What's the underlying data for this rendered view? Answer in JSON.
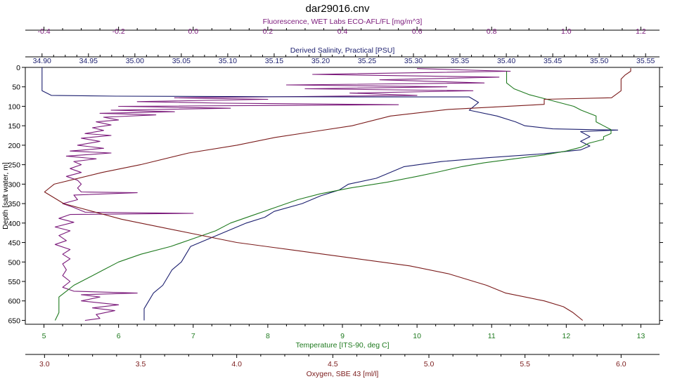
{
  "colors": {
    "fluorescence": "#7b1a7b",
    "salinity": "#1b1e6e",
    "temperature": "#1f7a1f",
    "oxygen": "#7a1a1a",
    "frame": "#000000",
    "background": "#ffffff"
  },
  "chart_data": {
    "type": "line",
    "title": "dar29016.cnv",
    "grid": false,
    "y_axis": {
      "label": "Depth [salt water, m]",
      "range": [
        0,
        660
      ],
      "ticks": [
        "0",
        "50",
        "100",
        "150",
        "200",
        "250",
        "300",
        "350",
        "400",
        "450",
        "500",
        "550",
        "600",
        "650"
      ],
      "inverted": true
    },
    "x_axes": [
      {
        "key": "fluorescence",
        "label": "Fluorescence, WET Labs ECO-AFL/FL [mg/m^3]",
        "position": "top-outer",
        "range": [
          -0.45,
          1.25
        ],
        "tick_values": [
          -0.4,
          -0.2,
          0.0,
          0.2,
          0.4,
          0.6,
          0.8,
          1.0,
          1.2
        ],
        "tick_labels": [
          "-0.4",
          "-0.2",
          "0.0",
          "0.2",
          "0.4",
          "0.6",
          "0.8",
          "1.0",
          "1.2"
        ]
      },
      {
        "key": "salinity",
        "label": "Derived Salinity, Practical [PSU]",
        "position": "top-inner",
        "range": [
          34.882,
          35.565
        ],
        "tick_values": [
          34.9,
          34.95,
          35.0,
          35.05,
          35.1,
          35.15,
          35.2,
          35.25,
          35.3,
          35.35,
          35.4,
          35.45,
          35.5,
          35.55
        ],
        "tick_labels": [
          "34.90",
          "34.95",
          "35.00",
          "35.05",
          "35.10",
          "35.15",
          "35.20",
          "35.25",
          "35.30",
          "35.35",
          "35.40",
          "35.45",
          "35.50",
          "35.55"
        ]
      },
      {
        "key": "temperature",
        "label": "Temperature [ITS-90, deg C]",
        "position": "bottom-inner",
        "range": [
          4.75,
          13.25
        ],
        "tick_values": [
          5,
          6,
          7,
          8,
          9,
          10,
          11,
          12,
          13
        ],
        "tick_labels": [
          "5",
          "6",
          "7",
          "8",
          "9",
          "10",
          "11",
          "12",
          "13"
        ]
      },
      {
        "key": "oxygen",
        "label": "Oxygen, SBE 43 [ml/l]",
        "position": "bottom-outer",
        "range": [
          2.9,
          6.2
        ],
        "tick_values": [
          3.0,
          3.5,
          4.0,
          4.5,
          5.0,
          5.5,
          6.0
        ],
        "tick_labels": [
          "3.0",
          "3.5",
          "4.0",
          "4.5",
          "5.0",
          "5.5",
          "6.0"
        ]
      }
    ],
    "series": [
      {
        "key": "fluorescence",
        "name": "Fluorescence, WET Labs ECO-AFL/FL [mg/m^3]",
        "points": [
          [
            0.6,
            3
          ],
          [
            0.85,
            10
          ],
          [
            0.32,
            18
          ],
          [
            0.82,
            25
          ],
          [
            0.5,
            32
          ],
          [
            0.78,
            40
          ],
          [
            0.25,
            45
          ],
          [
            0.68,
            50
          ],
          [
            0.3,
            55
          ],
          [
            0.75,
            60
          ],
          [
            0.42,
            66
          ],
          [
            0.6,
            72
          ],
          [
            -0.05,
            78
          ],
          [
            0.2,
            82
          ],
          [
            -0.15,
            88
          ],
          [
            0.08,
            92
          ],
          [
            0.55,
            96
          ],
          [
            -0.2,
            100
          ],
          [
            0.1,
            105
          ],
          [
            -0.22,
            110
          ],
          [
            -0.05,
            114
          ],
          [
            -0.25,
            118
          ],
          [
            -0.1,
            122
          ],
          [
            -0.24,
            128
          ],
          [
            -0.2,
            135
          ],
          [
            -0.26,
            140
          ],
          [
            -0.22,
            148
          ],
          [
            -0.27,
            155
          ],
          [
            -0.24,
            162
          ],
          [
            -0.29,
            170
          ],
          [
            -0.22,
            175
          ],
          [
            -0.3,
            182
          ],
          [
            -0.25,
            190
          ],
          [
            -0.31,
            200
          ],
          [
            -0.24,
            208
          ],
          [
            -0.33,
            215
          ],
          [
            -0.22,
            220
          ],
          [
            -0.34,
            228
          ],
          [
            -0.26,
            235
          ],
          [
            -0.32,
            242
          ],
          [
            -0.3,
            250
          ],
          [
            -0.33,
            260
          ],
          [
            -0.3,
            270
          ],
          [
            -0.34,
            280
          ],
          [
            -0.31,
            290
          ],
          [
            -0.3,
            300
          ],
          [
            -0.31,
            310
          ],
          [
            -0.3,
            320
          ],
          [
            -0.15,
            322
          ],
          [
            -0.32,
            328
          ],
          [
            -0.31,
            340
          ],
          [
            -0.35,
            350
          ],
          [
            -0.32,
            360
          ],
          [
            -0.29,
            372
          ],
          [
            0.0,
            375
          ],
          [
            -0.33,
            378
          ],
          [
            -0.36,
            388
          ],
          [
            -0.32,
            398
          ],
          [
            -0.37,
            410
          ],
          [
            -0.33,
            420
          ],
          [
            -0.36,
            432
          ],
          [
            -0.34,
            445
          ],
          [
            -0.37,
            455
          ],
          [
            -0.33,
            468
          ],
          [
            -0.35,
            480
          ],
          [
            -0.33,
            492
          ],
          [
            -0.35,
            505
          ],
          [
            -0.34,
            520
          ],
          [
            -0.35,
            535
          ],
          [
            -0.33,
            550
          ],
          [
            -0.35,
            565
          ],
          [
            -0.32,
            575
          ],
          [
            -0.15,
            580
          ],
          [
            -0.3,
            584
          ],
          [
            -0.25,
            590
          ],
          [
            -0.3,
            600
          ],
          [
            -0.2,
            610
          ],
          [
            -0.27,
            618
          ],
          [
            -0.21,
            625
          ],
          [
            -0.26,
            635
          ],
          [
            -0.25,
            645
          ],
          [
            -0.29,
            650
          ]
        ]
      },
      {
        "key": "salinity",
        "name": "Derived Salinity, Practical [PSU]",
        "points": [
          [
            34.9,
            0
          ],
          [
            34.9,
            20
          ],
          [
            34.9,
            40
          ],
          [
            34.9,
            60
          ],
          [
            34.91,
            72
          ],
          [
            34.98,
            74
          ],
          [
            35.1,
            75
          ],
          [
            35.25,
            76
          ],
          [
            35.36,
            76
          ],
          [
            35.37,
            90
          ],
          [
            35.36,
            110
          ],
          [
            35.39,
            125
          ],
          [
            35.41,
            140
          ],
          [
            35.42,
            150
          ],
          [
            35.45,
            158
          ],
          [
            35.49,
            160
          ],
          [
            35.52,
            161
          ],
          [
            35.48,
            165
          ],
          [
            35.49,
            178
          ],
          [
            35.48,
            190
          ],
          [
            35.49,
            202
          ],
          [
            35.48,
            212
          ],
          [
            35.44,
            222
          ],
          [
            35.38,
            232
          ],
          [
            35.33,
            242
          ],
          [
            35.29,
            255
          ],
          [
            35.27,
            275
          ],
          [
            35.26,
            285
          ],
          [
            35.23,
            300
          ],
          [
            35.22,
            315
          ],
          [
            35.2,
            330
          ],
          [
            35.18,
            350
          ],
          [
            35.15,
            370
          ],
          [
            35.14,
            385
          ],
          [
            35.12,
            400
          ],
          [
            35.1,
            420
          ],
          [
            35.08,
            440
          ],
          [
            35.06,
            460
          ],
          [
            35.055,
            480
          ],
          [
            35.05,
            500
          ],
          [
            35.04,
            520
          ],
          [
            35.035,
            540
          ],
          [
            35.03,
            560
          ],
          [
            35.02,
            580
          ],
          [
            35.015,
            600
          ],
          [
            35.01,
            620
          ],
          [
            35.01,
            640
          ],
          [
            35.01,
            650
          ]
        ]
      },
      {
        "key": "temperature",
        "name": "Temperature [ITS-90, deg C]",
        "points": [
          [
            11.2,
            10
          ],
          [
            11.2,
            40
          ],
          [
            11.3,
            55
          ],
          [
            11.5,
            70
          ],
          [
            11.8,
            85
          ],
          [
            12.1,
            100
          ],
          [
            12.2,
            110
          ],
          [
            12.4,
            125
          ],
          [
            12.4,
            140
          ],
          [
            12.5,
            150
          ],
          [
            12.6,
            160
          ],
          [
            12.6,
            170
          ],
          [
            12.5,
            178
          ],
          [
            12.5,
            185
          ],
          [
            12.3,
            195
          ],
          [
            12.2,
            205
          ],
          [
            12.0,
            215
          ],
          [
            11.7,
            225
          ],
          [
            11.3,
            235
          ],
          [
            10.9,
            245
          ],
          [
            10.6,
            255
          ],
          [
            10.3,
            268
          ],
          [
            10.0,
            280
          ],
          [
            9.6,
            295
          ],
          [
            9.1,
            310
          ],
          [
            8.7,
            325
          ],
          [
            8.4,
            340
          ],
          [
            8.1,
            360
          ],
          [
            7.8,
            380
          ],
          [
            7.5,
            400
          ],
          [
            7.3,
            420
          ],
          [
            7.0,
            440
          ],
          [
            6.7,
            460
          ],
          [
            6.3,
            480
          ],
          [
            6.0,
            500
          ],
          [
            5.8,
            520
          ],
          [
            5.6,
            540
          ],
          [
            5.4,
            560
          ],
          [
            5.3,
            575
          ],
          [
            5.2,
            590
          ],
          [
            5.2,
            610
          ],
          [
            5.2,
            630
          ],
          [
            5.15,
            650
          ]
        ]
      },
      {
        "key": "oxygen",
        "name": "Oxygen, SBE 43 [ml/l]",
        "points": [
          [
            6.05,
            2
          ],
          [
            6.05,
            10
          ],
          [
            6.02,
            20
          ],
          [
            6.0,
            30
          ],
          [
            6.0,
            60
          ],
          [
            5.95,
            78
          ],
          [
            5.6,
            82
          ],
          [
            5.6,
            95
          ],
          [
            5.1,
            108
          ],
          [
            4.8,
            125
          ],
          [
            4.6,
            150
          ],
          [
            4.4,
            165
          ],
          [
            4.2,
            180
          ],
          [
            4.0,
            200
          ],
          [
            3.75,
            220
          ],
          [
            3.5,
            250
          ],
          [
            3.3,
            270
          ],
          [
            3.05,
            300
          ],
          [
            3.0,
            320
          ],
          [
            3.1,
            350
          ],
          [
            3.4,
            390
          ],
          [
            3.6,
            410
          ],
          [
            3.8,
            430
          ],
          [
            4.0,
            450
          ],
          [
            4.3,
            470
          ],
          [
            4.6,
            490
          ],
          [
            4.9,
            510
          ],
          [
            5.1,
            530
          ],
          [
            5.3,
            560
          ],
          [
            5.4,
            580
          ],
          [
            5.6,
            600
          ],
          [
            5.7,
            615
          ],
          [
            5.75,
            630
          ],
          [
            5.8,
            650
          ]
        ]
      }
    ]
  }
}
